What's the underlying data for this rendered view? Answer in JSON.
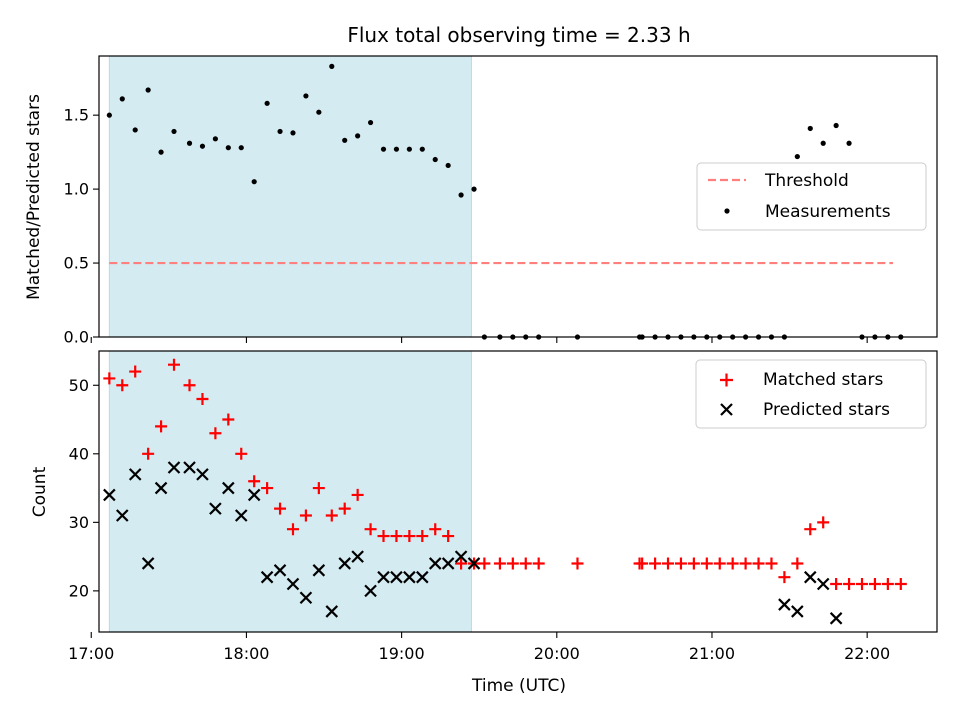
{
  "chart_data": [
    {
      "type": "scatter",
      "title": "Flux total observing time = 2.33 h",
      "xlabel": "",
      "ylabel": "Matched/Predicted stars",
      "xlim": [
        "17:03",
        "22:27"
      ],
      "ylim": [
        0,
        1.9
      ],
      "yticks": [
        0.0,
        0.5,
        1.0,
        1.5
      ],
      "ytick_labels": [
        "0.0",
        "0.5",
        "1.0",
        "1.5"
      ],
      "shaded_interval": {
        "x0": "17:07",
        "x1": "19:27",
        "color": "#add8e6"
      },
      "grid": false,
      "legend_position": "center-right",
      "series": [
        {
          "name": "Threshold",
          "style": "dashed-line",
          "color": "#ff7f7f",
          "x": [
            "17:07",
            "22:10"
          ],
          "y": [
            0.5,
            0.5
          ]
        },
        {
          "name": "Measurements",
          "style": "dot",
          "color": "#000000",
          "x": [
            "17:07",
            "17:12",
            "17:17",
            "17:22",
            "17:27",
            "17:32",
            "17:38",
            "17:43",
            "17:48",
            "17:53",
            "17:58",
            "18:03",
            "18:08",
            "18:13",
            "18:18",
            "18:23",
            "18:28",
            "18:33",
            "18:38",
            "18:43",
            "18:48",
            "18:53",
            "18:58",
            "19:03",
            "19:08",
            "19:13",
            "19:18",
            "19:23",
            "19:28",
            "19:32",
            "19:38",
            "19:43",
            "19:48",
            "19:53",
            "20:08",
            "20:32",
            "20:33",
            "20:38",
            "20:43",
            "20:48",
            "20:53",
            "20:58",
            "21:03",
            "21:08",
            "21:13",
            "21:18",
            "21:23",
            "21:28",
            "21:33",
            "21:38",
            "21:43",
            "21:48",
            "21:53",
            "21:58",
            "22:03",
            "22:08",
            "22:13"
          ],
          "y": [
            1.5,
            1.61,
            1.4,
            1.67,
            1.25,
            1.39,
            1.31,
            1.29,
            1.34,
            1.28,
            1.28,
            1.05,
            1.58,
            1.39,
            1.38,
            1.63,
            1.52,
            1.83,
            1.33,
            1.36,
            1.45,
            1.27,
            1.27,
            1.27,
            1.27,
            1.2,
            1.16,
            0.96,
            1.0,
            0,
            0,
            0,
            0,
            0,
            0,
            0,
            0,
            0,
            0,
            0,
            0,
            0,
            0,
            0,
            0,
            0,
            0,
            0,
            1.22,
            1.41,
            1.31,
            1.43,
            1.31,
            0,
            0,
            0,
            0
          ]
        }
      ]
    },
    {
      "type": "scatter",
      "title": "",
      "xlabel": "Time (UTC)",
      "ylabel": "Count",
      "xlim": [
        "17:03",
        "22:27"
      ],
      "ylim": [
        14,
        55
      ],
      "yticks": [
        20,
        30,
        40,
        50
      ],
      "ytick_labels": [
        "20",
        "30",
        "40",
        "50"
      ],
      "xticks": [
        "17:00",
        "18:00",
        "19:00",
        "20:00",
        "21:00",
        "22:00"
      ],
      "shaded_interval": {
        "x0": "17:07",
        "x1": "19:27",
        "color": "#add8e6"
      },
      "grid": false,
      "legend_position": "top-right",
      "series": [
        {
          "name": "Matched stars",
          "style": "plus",
          "color": "#ff0000",
          "x": [
            "17:07",
            "17:12",
            "17:17",
            "17:22",
            "17:27",
            "17:32",
            "17:38",
            "17:43",
            "17:48",
            "17:53",
            "17:58",
            "18:03",
            "18:08",
            "18:13",
            "18:18",
            "18:23",
            "18:28",
            "18:33",
            "18:38",
            "18:43",
            "18:48",
            "18:53",
            "18:58",
            "19:03",
            "19:08",
            "19:13",
            "19:18",
            "19:23",
            "19:28",
            "19:32",
            "19:38",
            "19:43",
            "19:48",
            "19:53",
            "20:08",
            "20:32",
            "20:33",
            "20:38",
            "20:43",
            "20:48",
            "20:53",
            "20:58",
            "21:03",
            "21:08",
            "21:13",
            "21:18",
            "21:23",
            "21:28",
            "21:33",
            "21:38",
            "21:43",
            "21:48",
            "21:53",
            "21:58",
            "22:03",
            "22:08",
            "22:13"
          ],
          "y": [
            51,
            50,
            52,
            40,
            44,
            53,
            50,
            48,
            43,
            45,
            40,
            36,
            35,
            32,
            29,
            31,
            35,
            31,
            32,
            34,
            29,
            28,
            28,
            28,
            28,
            29,
            28,
            24,
            24,
            24,
            24,
            24,
            24,
            24,
            24,
            24,
            24,
            24,
            24,
            24,
            24,
            24,
            24,
            24,
            24,
            24,
            24,
            22,
            24,
            29,
            30,
            21,
            21,
            21,
            21,
            21,
            21
          ]
        },
        {
          "name": "Predicted stars",
          "style": "x",
          "color": "#000000",
          "x": [
            "17:07",
            "17:12",
            "17:17",
            "17:22",
            "17:27",
            "17:32",
            "17:38",
            "17:43",
            "17:48",
            "17:53",
            "17:58",
            "18:03",
            "18:08",
            "18:13",
            "18:18",
            "18:23",
            "18:28",
            "18:33",
            "18:38",
            "18:43",
            "18:48",
            "18:53",
            "18:58",
            "19:03",
            "19:08",
            "19:13",
            "19:18",
            "19:23",
            "19:28",
            "21:28",
            "21:33",
            "21:38",
            "21:43",
            "21:48"
          ],
          "y": [
            34,
            31,
            37,
            24,
            35,
            38,
            38,
            37,
            32,
            35,
            31,
            34,
            22,
            23,
            21,
            19,
            23,
            17,
            24,
            25,
            20,
            22,
            22,
            22,
            22,
            24,
            24,
            25,
            24,
            18,
            17,
            22,
            21,
            16
          ]
        }
      ]
    }
  ]
}
